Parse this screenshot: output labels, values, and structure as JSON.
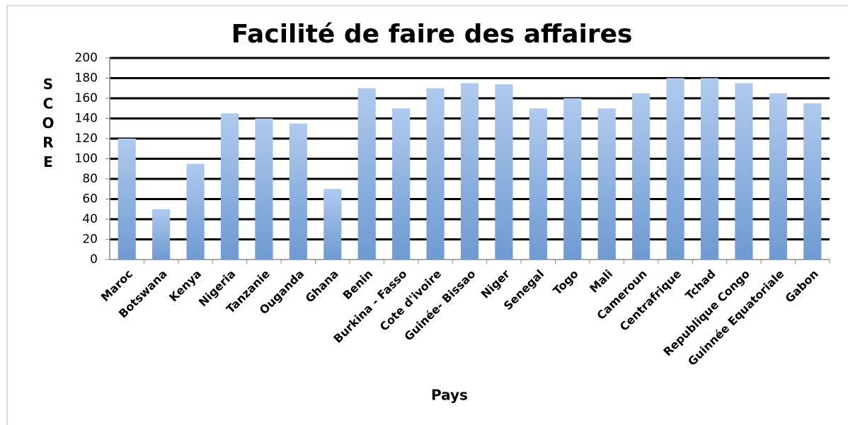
{
  "chart_data": {
    "type": "bar",
    "title": "Facilité de faire des affaires",
    "x_label": "Pays",
    "y_label": "SCORE",
    "categories": [
      "Maroc",
      "Botswana",
      "Kenya",
      "Nigeria",
      "Tanzanie",
      "Ouganda",
      "Ghana",
      "Benin",
      "Burkina - Fasso",
      "Cote d'ivoire",
      "Guinée- Bissao",
      "Niger",
      "Senegal",
      "Togo",
      "Mali",
      "Cameroun",
      "Centrafrique",
      "Tchad",
      "Republique  Congo",
      "Guinnée Equatoriale",
      "Gabon"
    ],
    "values": [
      120,
      50,
      95,
      145,
      140,
      135,
      70,
      170,
      150,
      170,
      175,
      174,
      150,
      160,
      150,
      165,
      180,
      180,
      175,
      165,
      155
    ],
    "color": "#8cb0e0",
    "ylim": [
      0,
      200
    ],
    "yticks": [
      0,
      20,
      40,
      60,
      80,
      100,
      120,
      140,
      160,
      180,
      200
    ],
    "grid": true
  }
}
